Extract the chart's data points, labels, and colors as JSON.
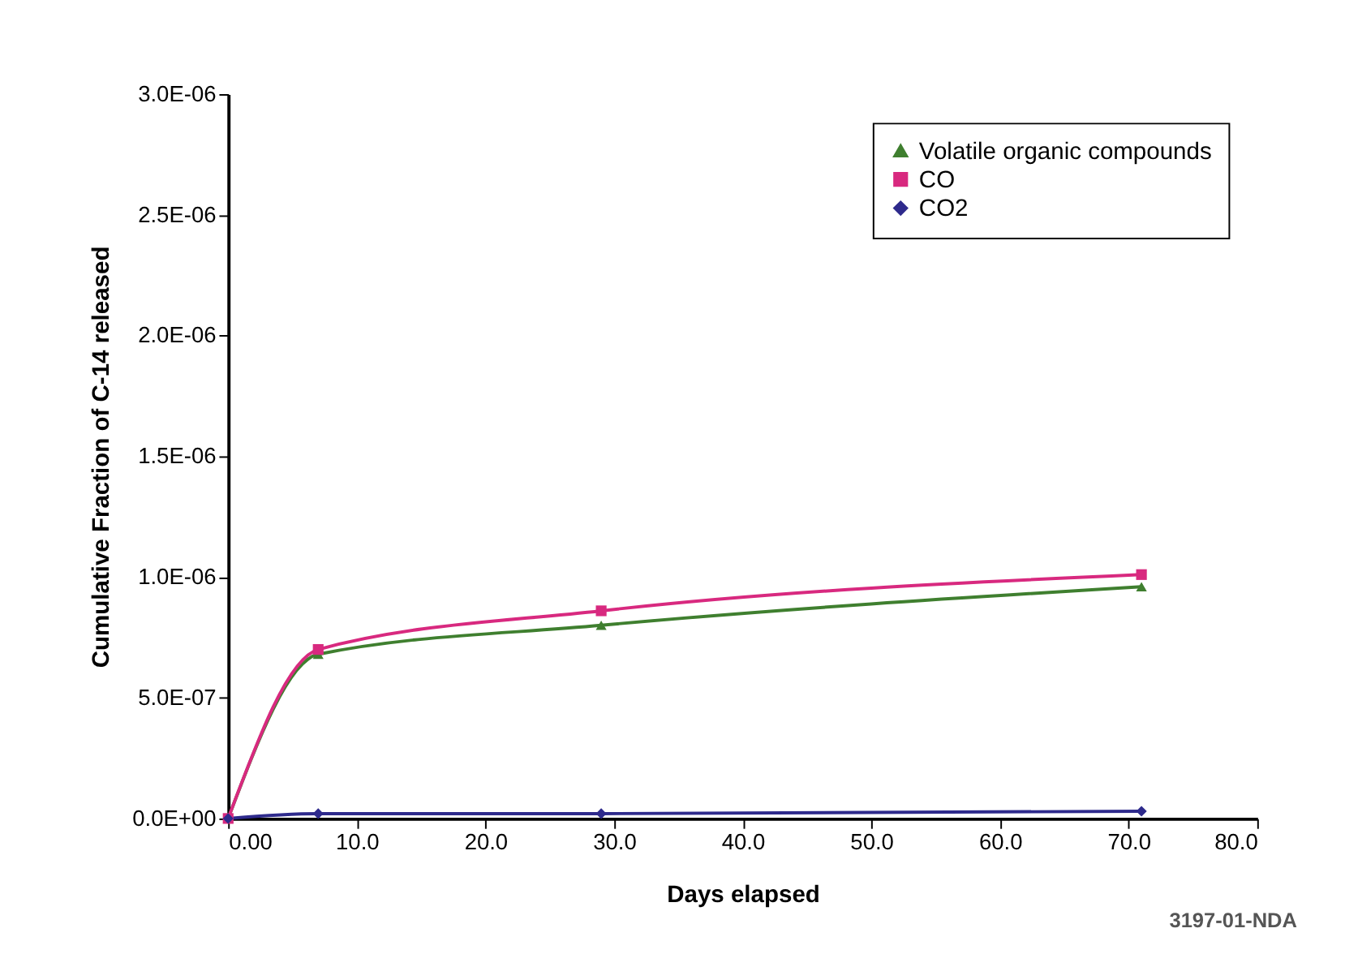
{
  "chart_data": {
    "type": "line",
    "xlabel": "Days elapsed",
    "ylabel": "Cumulative Fraction of C-14 released",
    "xlim": [
      0,
      80
    ],
    "xticks": [
      {
        "value": 0,
        "label": "0.00"
      },
      {
        "value": 10,
        "label": "10.0"
      },
      {
        "value": 20,
        "label": "20.0"
      },
      {
        "value": 30,
        "label": "30.0"
      },
      {
        "value": 40,
        "label": "40.0"
      },
      {
        "value": 50,
        "label": "50.0"
      },
      {
        "value": 60,
        "label": "60.0"
      },
      {
        "value": 70,
        "label": "70.0"
      },
      {
        "value": 80,
        "label": "80.0"
      }
    ],
    "ylim": [
      0,
      3e-06
    ],
    "yticks": [
      {
        "value": 0,
        "label": "0.0E+00"
      },
      {
        "value": 5e-07,
        "label": "5.0E-07"
      },
      {
        "value": 1e-06,
        "label": "1.0E-06"
      },
      {
        "value": 1.5e-06,
        "label": "1.5E-06"
      },
      {
        "value": 2e-06,
        "label": "2.0E-06"
      },
      {
        "value": 2.5e-06,
        "label": "2.5E-06"
      },
      {
        "value": 3e-06,
        "label": "3.0E-06"
      }
    ],
    "x": [
      0,
      7,
      29,
      71
    ],
    "series": [
      {
        "name": "Volatile organic compounds",
        "color": "#3f7f2f",
        "marker": "triangle",
        "values": [
          0,
          6.8e-07,
          8e-07,
          9.6e-07
        ]
      },
      {
        "name": "CO",
        "color": "#d8297f",
        "marker": "square",
        "values": [
          0,
          7e-07,
          8.6e-07,
          1.01e-06
        ]
      },
      {
        "name": "CO2",
        "color": "#2e2a8c",
        "marker": "diamond",
        "values": [
          0,
          2e-08,
          2e-08,
          3e-08
        ]
      }
    ],
    "legend": "top right",
    "grid": false,
    "annotations": [
      "3197-01-NDA"
    ]
  }
}
